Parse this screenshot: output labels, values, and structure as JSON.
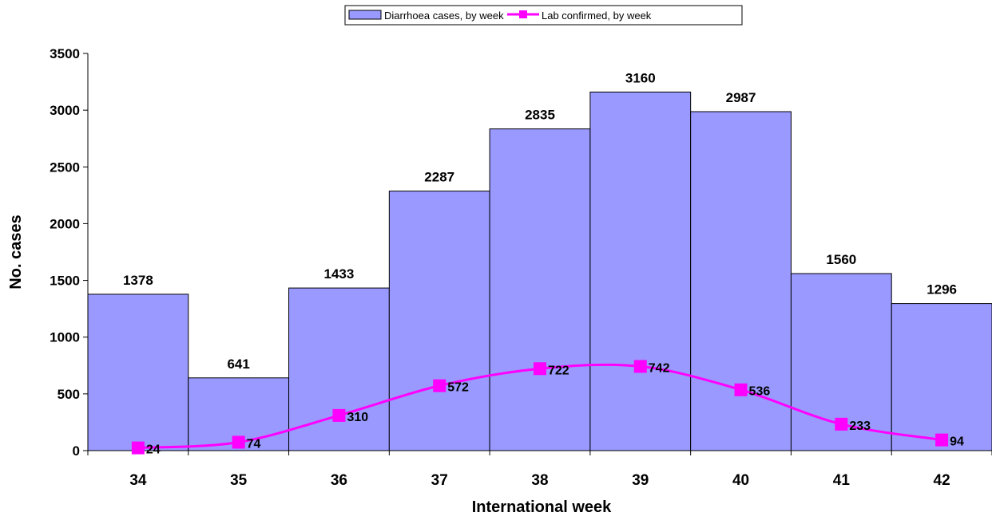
{
  "chart_data": {
    "type": "bar",
    "categories": [
      "34",
      "35",
      "36",
      "37",
      "38",
      "39",
      "40",
      "41",
      "42"
    ],
    "series": [
      {
        "name": "Diarrhoea cases, by week",
        "type": "bar",
        "values": [
          1378,
          641,
          1433,
          2287,
          2835,
          3160,
          2987,
          1560,
          1296
        ],
        "color": "#9999ff"
      },
      {
        "name": "Lab confirmed, by week",
        "type": "line",
        "values": [
          24,
          74,
          310,
          572,
          722,
          742,
          536,
          233,
          94
        ],
        "color": "#ff00ff"
      }
    ],
    "xlabel": "International week",
    "ylabel": "No. cases",
    "ylim": [
      0,
      3500
    ],
    "yticks": [
      0,
      500,
      1000,
      1500,
      2000,
      2500,
      3000,
      3500
    ],
    "grid": false,
    "legend_position": "top-center"
  }
}
